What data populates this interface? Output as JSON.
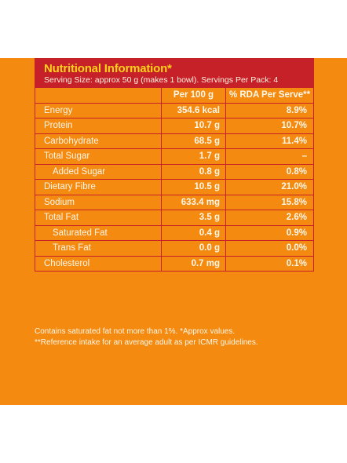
{
  "table": {
    "title": "Nutritional Information*",
    "subtitle": "Serving Size: approx 50 g (makes 1 bowl). Servings Per Pack: 4",
    "col_per100": "Per 100 g",
    "col_rda": "% RDA Per Serve**",
    "rows": [
      {
        "label": "Energy",
        "per100": "354.6 kcal",
        "rda": "8.9%"
      },
      {
        "label": "Protein",
        "per100": "10.7 g",
        "rda": "10.7%"
      },
      {
        "label": "Carbohydrate",
        "per100": "68.5 g",
        "rda": "11.4%"
      },
      {
        "label": "Total Sugar",
        "per100": "1.7 g",
        "rda": "–"
      },
      {
        "label": "Added Sugar",
        "per100": "0.8 g",
        "rda": "0.8%"
      },
      {
        "label": "Dietary Fibre",
        "per100": "10.5 g",
        "rda": "21.0%"
      },
      {
        "label": "Sodium",
        "per100": "633.4 mg",
        "rda": "15.8%"
      },
      {
        "label": "Total Fat",
        "per100": "3.5 g",
        "rda": "2.6%"
      },
      {
        "label": "Saturated Fat",
        "per100": "0.4 g",
        "rda": "0.9%"
      },
      {
        "label": "Trans Fat",
        "per100": "0.0 g",
        "rda": "0.0%"
      },
      {
        "label": "Cholesterol",
        "per100": "0.7 mg",
        "rda": "0.1%"
      }
    ]
  },
  "notes": {
    "line1": "Contains saturated fat not more than 1%. *Approx values.",
    "line2": "**Reference intake for an average adult as per ICMR guidelines."
  }
}
